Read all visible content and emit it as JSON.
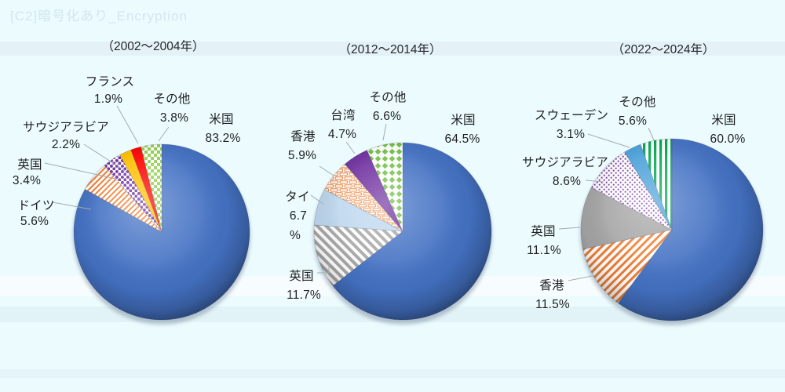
{
  "watermark": "[C2]暗号化あり_Encryption",
  "colors": {
    "background": "#EBFBFE",
    "label_text": "#1F1F1F",
    "title_text": "#262626",
    "leader_line": "#A3ACB0",
    "us_blue": "#4472C4",
    "orange": "#ED7D31",
    "purple": "#7030A0",
    "gold": "#FFC000",
    "red": "#FF0000",
    "green_checker": "#92D050",
    "green_diamond": "#70C144",
    "green_stripe": "#00A651",
    "gray": "#A6A6A6",
    "pale_blue": "#BDD7EE",
    "sky_blue": "#4AA0DA"
  },
  "chart_data": [
    {
      "type": "pie",
      "title": "（2002～2004年）",
      "start_angle_deg": 0,
      "direction": "clockwise",
      "slices": [
        {
          "key": "usa",
          "name": "米国",
          "pct": 83.2,
          "label": "83.2%",
          "color": "#4472C4",
          "pattern": "solid"
        },
        {
          "key": "germany",
          "name": "ドイツ",
          "pct": 5.6,
          "label": "5.6%",
          "color": "#ED7D31",
          "pattern": "stripe-up-thin"
        },
        {
          "key": "uk",
          "name": "英国",
          "pct": 3.4,
          "label": "3.4%",
          "color": "#7030A0",
          "pattern": "dots"
        },
        {
          "key": "saudi-arabia",
          "name": "サウジアラビア",
          "pct": 2.2,
          "label": "2.2%",
          "color": "#FFC000",
          "pattern": "solid"
        },
        {
          "key": "france",
          "name": "フランス",
          "pct": 1.9,
          "label": "1.9%",
          "color": "#FF0000",
          "pattern": "solid"
        },
        {
          "key": "other",
          "name": "その他",
          "pct": 3.8,
          "label": "3.8%",
          "color": "#92D050",
          "pattern": "checker"
        }
      ]
    },
    {
      "type": "pie",
      "title": "（2012～2014年）",
      "start_angle_deg": 0,
      "direction": "clockwise",
      "slices": [
        {
          "key": "usa",
          "name": "米国",
          "pct": 64.5,
          "label": "64.5%",
          "color": "#4472C4",
          "pattern": "solid"
        },
        {
          "key": "uk",
          "name": "英国",
          "pct": 11.7,
          "label": "11.7%",
          "color": "#A6A6A6",
          "pattern": "stripe-down"
        },
        {
          "key": "thailand",
          "name": "タイ",
          "pct": 6.7,
          "label": "6.7%",
          "color": "#BDD7EE",
          "pattern": "solid"
        },
        {
          "key": "hong-kong",
          "name": "香港",
          "pct": 5.9,
          "label": "5.9%",
          "color": "#ED7D31",
          "pattern": "brick"
        },
        {
          "key": "taiwan",
          "name": "台湾",
          "pct": 4.7,
          "label": "4.7%",
          "color": "#7030A0",
          "pattern": "solid"
        },
        {
          "key": "other",
          "name": "その他",
          "pct": 6.6,
          "label": "6.6%",
          "color": "#70C144",
          "pattern": "diamond"
        }
      ]
    },
    {
      "type": "pie",
      "title": "（2022～2024年）",
      "start_angle_deg": 0,
      "direction": "clockwise",
      "slices": [
        {
          "key": "usa",
          "name": "米国",
          "pct": 60.0,
          "label": "60.0%",
          "color": "#4472C4",
          "pattern": "solid"
        },
        {
          "key": "hong-kong",
          "name": "香港",
          "pct": 11.5,
          "label": "11.5%",
          "color": "#ED7D31",
          "pattern": "stripe-up"
        },
        {
          "key": "uk",
          "name": "英国",
          "pct": 11.1,
          "label": "11.1%",
          "color": "#A5A5A5",
          "pattern": "solid"
        },
        {
          "key": "saudi-arabia",
          "name": "サウジアラビア",
          "pct": 8.6,
          "label": "8.6%",
          "color": "#7030A0",
          "pattern": "squares"
        },
        {
          "key": "sweden",
          "name": "スウェーデン",
          "pct": 3.1,
          "label": "3.1%",
          "color": "#4AA0DA",
          "pattern": "solid"
        },
        {
          "key": "other",
          "name": "その他",
          "pct": 5.6,
          "label": "5.6%",
          "color": "#00A651",
          "pattern": "vstripe"
        }
      ]
    }
  ]
}
